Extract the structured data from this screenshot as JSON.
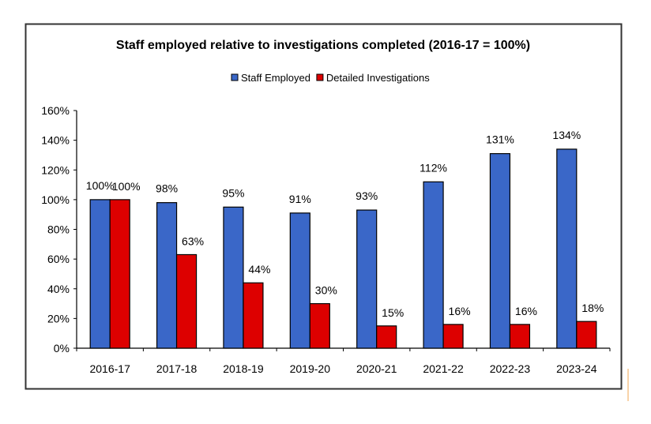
{
  "chart_data": {
    "type": "bar",
    "title": "Staff employed relative to investigations completed (2016-17 = 100%)",
    "xlabel": "",
    "ylabel": "",
    "categories": [
      "2016-17",
      "2017-18",
      "2018-19",
      "2019-20",
      "2020-21",
      "2021-22",
      "2022-23",
      "2023-24"
    ],
    "series": [
      {
        "name": "Staff Employed",
        "color": "#3A67C8",
        "values": [
          100,
          98,
          95,
          91,
          93,
          112,
          131,
          134
        ]
      },
      {
        "name": "Detailed Investigations",
        "color": "#DD0000",
        "values": [
          100,
          63,
          44,
          30,
          15,
          16,
          16,
          18
        ]
      }
    ],
    "ylim": [
      0,
      160
    ],
    "yticks": [
      0,
      20,
      40,
      60,
      80,
      100,
      120,
      140,
      160
    ],
    "ytick_format": "{v}%",
    "data_label_format": "{v}%",
    "grid": false,
    "legend_position": "top-center"
  }
}
